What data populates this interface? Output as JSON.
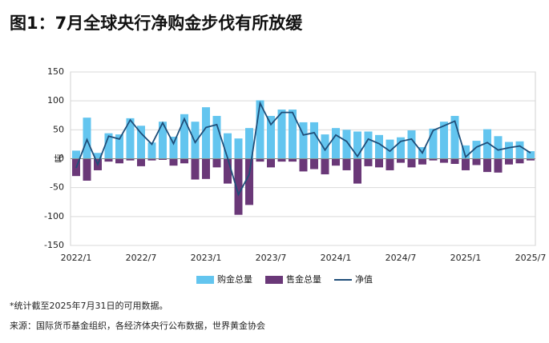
{
  "chart_data": {
    "type": "bar",
    "title": "图1：7月全球央行净购金步伐有所放缓",
    "y_label": "吨",
    "categories": [
      "2022/1",
      null,
      null,
      null,
      null,
      null,
      "2022/7",
      null,
      null,
      null,
      null,
      null,
      "2023/1",
      null,
      null,
      null,
      null,
      null,
      "2023/7",
      null,
      null,
      null,
      null,
      null,
      "2024/1",
      null,
      null,
      null,
      null,
      null,
      "2024/7",
      null,
      null,
      null,
      null,
      null,
      "2025/1",
      null,
      null,
      null,
      null,
      null,
      "2025/7"
    ],
    "series": [
      {
        "name": "购金总量",
        "color": "#63c5ef",
        "kind": "bar",
        "values": [
          14,
          71,
          10,
          44,
          42,
          70,
          57,
          28,
          64,
          38,
          77,
          64,
          89,
          74,
          44,
          35,
          53,
          101,
          74,
          85,
          85,
          63,
          63,
          42,
          53,
          50,
          47,
          47,
          41,
          33,
          37,
          49,
          20,
          52,
          64,
          74,
          23,
          31,
          51,
          39,
          29,
          30,
          13
        ]
      },
      {
        "name": "售金总量",
        "color": "#6a3878",
        "kind": "bar",
        "values": [
          -30,
          -38,
          -20,
          -5,
          -8,
          -3,
          -13,
          -3,
          -2,
          -12,
          -8,
          -36,
          -35,
          -15,
          -43,
          -97,
          -80,
          -5,
          -15,
          -5,
          -5,
          -22,
          -18,
          -27,
          -12,
          -20,
          -43,
          -13,
          -15,
          -20,
          -7,
          -15,
          -10,
          -3,
          -7,
          -9,
          -20,
          -11,
          -23,
          -24,
          -10,
          -8,
          -3
        ]
      },
      {
        "name": "净值",
        "color": "#1f4e79",
        "kind": "line",
        "values": [
          -16,
          33,
          -10,
          39,
          34,
          67,
          44,
          25,
          62,
          26,
          69,
          28,
          54,
          59,
          1,
          -62,
          -27,
          96,
          59,
          80,
          80,
          41,
          45,
          15,
          41,
          30,
          4,
          34,
          26,
          13,
          30,
          34,
          10,
          49,
          57,
          65,
          3,
          20,
          28,
          15,
          19,
          22,
          10
        ]
      }
    ],
    "ylim": [
      -150,
      150
    ],
    "yticks": [
      150,
      100,
      50,
      0,
      -50,
      -100,
      -150
    ],
    "grid": true,
    "annotations": [
      "*统计截至2025年7月31日的可用数据。",
      "来源：国际货币基金组织，各经济体央行公布数据，世界黄金协会"
    ]
  }
}
